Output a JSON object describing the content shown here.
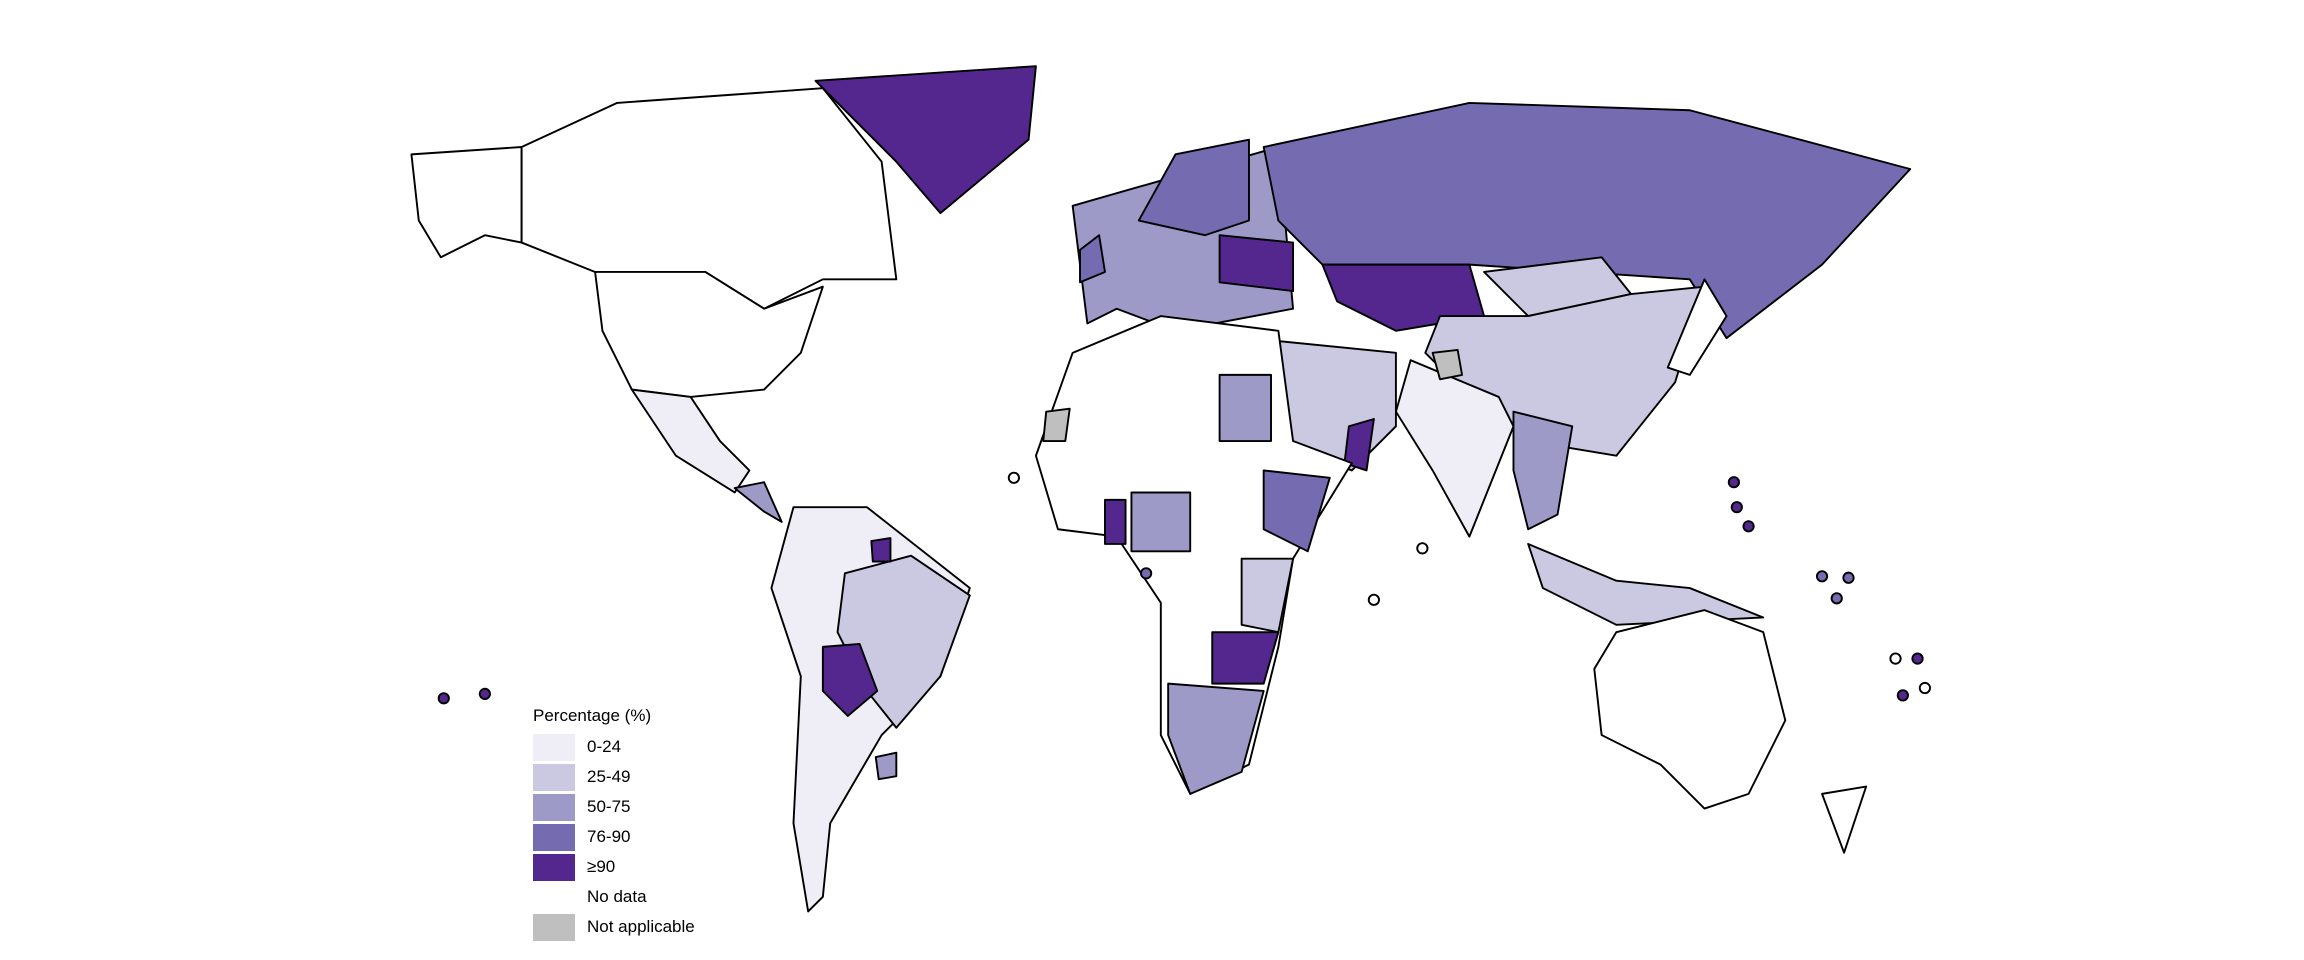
{
  "legend": {
    "title": "Percentage (%)",
    "items": [
      {
        "label": "0-24",
        "color": "#efedf5"
      },
      {
        "label": "25-49",
        "color": "#cbc9e2"
      },
      {
        "label": "50-75",
        "color": "#9e9ac8"
      },
      {
        "label": "76-90",
        "color": "#756bb1"
      },
      {
        "label": "≥90",
        "color": "#54278f"
      },
      {
        "label": "No data",
        "color": "#ffffff"
      },
      {
        "label": "Not applicable",
        "color": "#bfbfbf"
      }
    ]
  },
  "map_regions": {
    "alaska": "No data",
    "canada": "No data",
    "usa": "No data",
    "mexico": "0-24",
    "central-america": "50-75",
    "greenland": "≥90",
    "south-america": "0-24",
    "brazil": "25-49",
    "bolivia": "≥90",
    "guiana": "≥90",
    "uruguay": "50-75",
    "europe": "50-75",
    "scandinavia": "76-90",
    "ukraine-belarus": "≥90",
    "uk": "76-90",
    "russia": "76-90",
    "kazakhstan": "≥90",
    "mongolia": "25-49",
    "china": "25-49",
    "india": "0-24",
    "middle-east": "25-49",
    "oman": "≥90",
    "africa": "No data",
    "western-sahara": "Not applicable",
    "egypt": "50-75",
    "nigeria": "50-75",
    "ghana": "≥90",
    "ethiopia": "76-90",
    "east-africa": "25-49",
    "zambia-zimbabwe": "≥90",
    "southern-africa": "50-75",
    "indochina": "50-75",
    "indonesia": "25-49",
    "japan": "No data",
    "australia": "No data",
    "new-zealand": "No data",
    "kashmir": "Not applicable"
  }
}
